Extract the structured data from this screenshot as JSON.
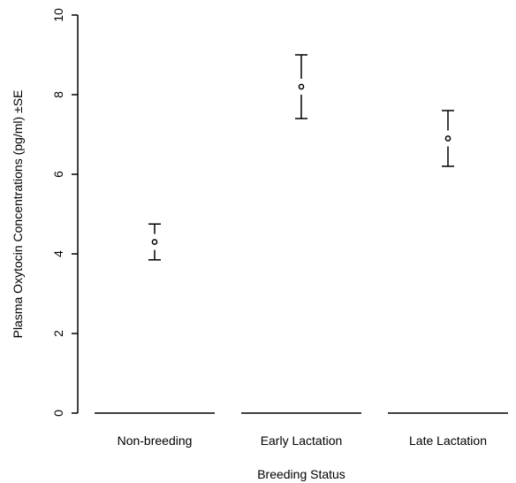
{
  "chart_data": {
    "type": "scatter",
    "title": "",
    "xlabel": "Breeding Status",
    "ylabel": "Plasma Oxytocin Concentrations (pg/ml) ±SE",
    "categories": [
      "Non-breeding",
      "Early Lactation",
      "Late Lactation"
    ],
    "values": [
      4.3,
      8.2,
      6.9
    ],
    "error_low": [
      3.85,
      7.4,
      6.2
    ],
    "error_high": [
      4.75,
      9.0,
      7.6
    ],
    "ylim": [
      0,
      10
    ],
    "yticks": [
      "0",
      "2",
      "4",
      "6",
      "8",
      "10"
    ],
    "grid": false,
    "legend": "none"
  }
}
